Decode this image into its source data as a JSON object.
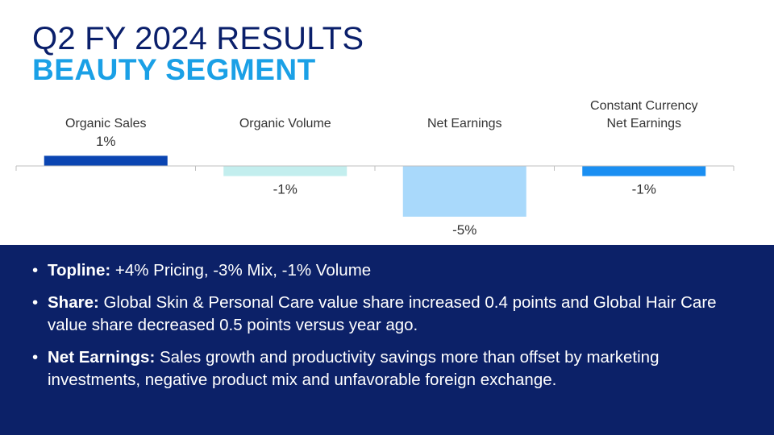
{
  "title": "Q2 FY 2024 RESULTS",
  "subtitle": "BEAUTY SEGMENT",
  "chart_data": {
    "type": "bar",
    "categories": [
      [
        "Organic Sales"
      ],
      [
        "Organic Volume"
      ],
      [
        "Net Earnings"
      ],
      [
        "Constant Currency",
        "Net Earnings"
      ]
    ],
    "values": [
      1,
      -1,
      -5,
      -1
    ],
    "value_labels": [
      "1%",
      "-1%",
      "-5%",
      "-1%"
    ],
    "bar_colors": [
      "#0b45b2",
      "#c3eeee",
      "#a9d9fb",
      "#1a8ff2"
    ],
    "ylim": [
      -5,
      1
    ],
    "grid": false,
    "legend": "none"
  },
  "bullets": [
    {
      "label": "Topline:",
      "text": " +4% Pricing, -3% Mix, -1% Volume"
    },
    {
      "label": "Share:",
      "text": " Global Skin & Personal Care value share increased 0.4 points and Global Hair Care value share decreased 0.5 points versus year ago."
    },
    {
      "label": "Net Earnings:",
      "text": " Sales growth and productivity savings more than offset by marketing investments, negative product mix and unfavorable foreign exchange."
    }
  ]
}
